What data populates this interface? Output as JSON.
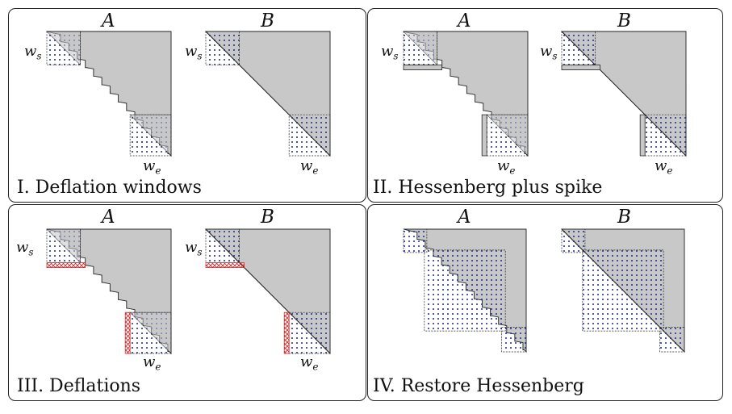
{
  "matrix_labels": {
    "a": "A",
    "b": "B"
  },
  "window_labels": {
    "ws_main": "w",
    "ws_sub": "s",
    "we_main": "w",
    "we_sub": "e"
  },
  "panels": [
    {
      "caption": "I. Deflation windows"
    },
    {
      "caption": "II. Hessenberg plus spike"
    },
    {
      "caption": "III. Deflations"
    },
    {
      "caption": "IV. Restore Hessenberg"
    }
  ],
  "colors": {
    "gray_fill": "#c8c8c8",
    "dot_blue": "#1f2f8a",
    "deflation_red": "#d42a2a",
    "outline": "#222222"
  }
}
